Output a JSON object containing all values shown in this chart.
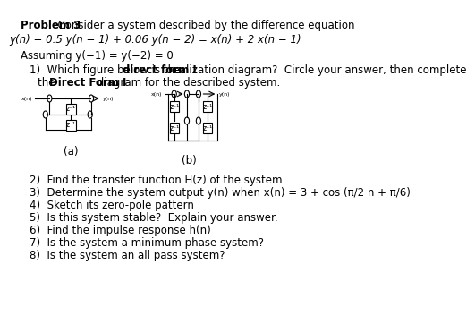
{
  "title_bold": "Problem 3",
  "title_rest": "  Consider a system described by the difference equation",
  "eq1": "y(n) − 0.5 y(n − 1) + 0.06 y(n − 2) = x(n) + 2 x(n − 1)",
  "assuming": "Assuming y(−1) = y(−2) = 0",
  "q1": "1)   Which figure below is the ",
  "q1b1": "direct form I",
  "q1b2": " realization diagram?  Circle your answer, then complete",
  "q1c": "      the ",
  "q1d": "Direct Form I",
  "q1e": " diagram for the described system.",
  "q2": "2)   Find the transfer function H(z) of the system.",
  "q3": "3)   Determine the system output y(n) when x(n) = 3 + cos (π/2 n + π/6)",
  "q4": "4)   Sketch its zero-pole pattern",
  "q5": "5)   Is this system stable?  Explain your answer.",
  "q6": "6)   Find the impulse response h(n)",
  "q7": "7)   Is the system a minimum phase system?",
  "q8": "8)   Is the system an all pass system?",
  "label_a": "(a)",
  "label_b": "(b)",
  "bg_color": "#ffffff",
  "text_color": "#000000",
  "fontsize": 8.5,
  "small_fontsize": 7.0
}
